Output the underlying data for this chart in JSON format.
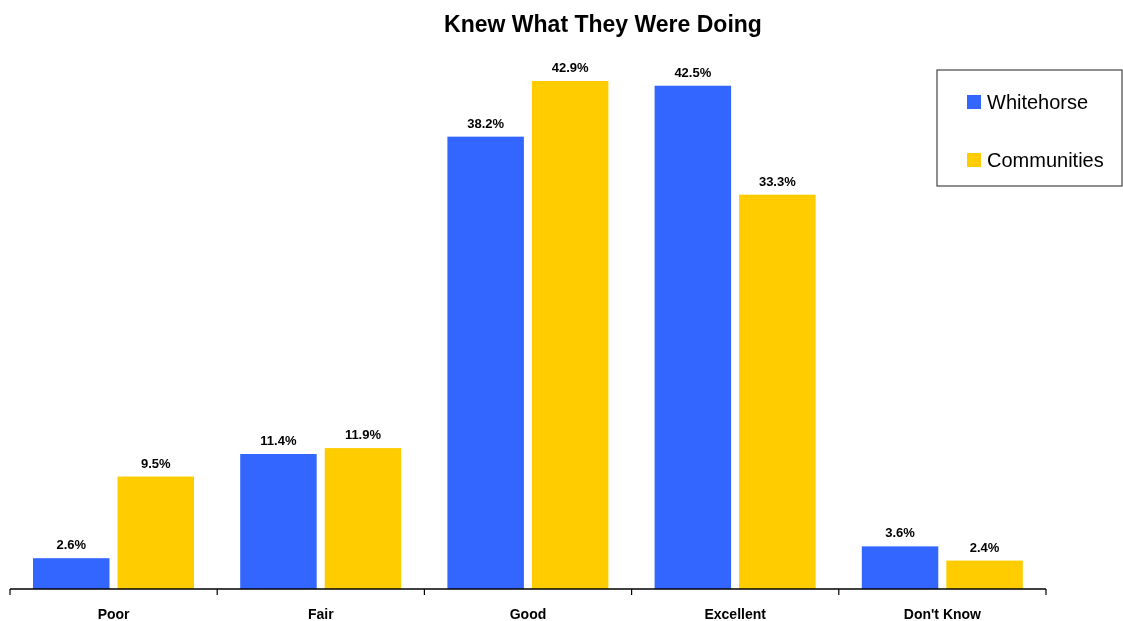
{
  "chart_data": {
    "type": "bar",
    "title": "Knew What They Were Doing",
    "categories": [
      "Poor",
      "Fair",
      "Good",
      "Excellent",
      "Don't Know"
    ],
    "series": [
      {
        "name": "Whitehorse",
        "color": "#3366ff",
        "values": [
          2.6,
          11.4,
          38.2,
          42.5,
          3.6
        ],
        "value_labels": [
          "2.6%",
          "11.4%",
          "38.2%",
          "42.5%",
          "3.6%"
        ]
      },
      {
        "name": "Communities",
        "color": "#ffcc00",
        "values": [
          9.5,
          11.9,
          42.9,
          33.3,
          2.4
        ],
        "value_labels": [
          "9.5%",
          "11.9%",
          "42.9%",
          "33.3%",
          "2.4%"
        ]
      }
    ],
    "legend": "top right"
  }
}
